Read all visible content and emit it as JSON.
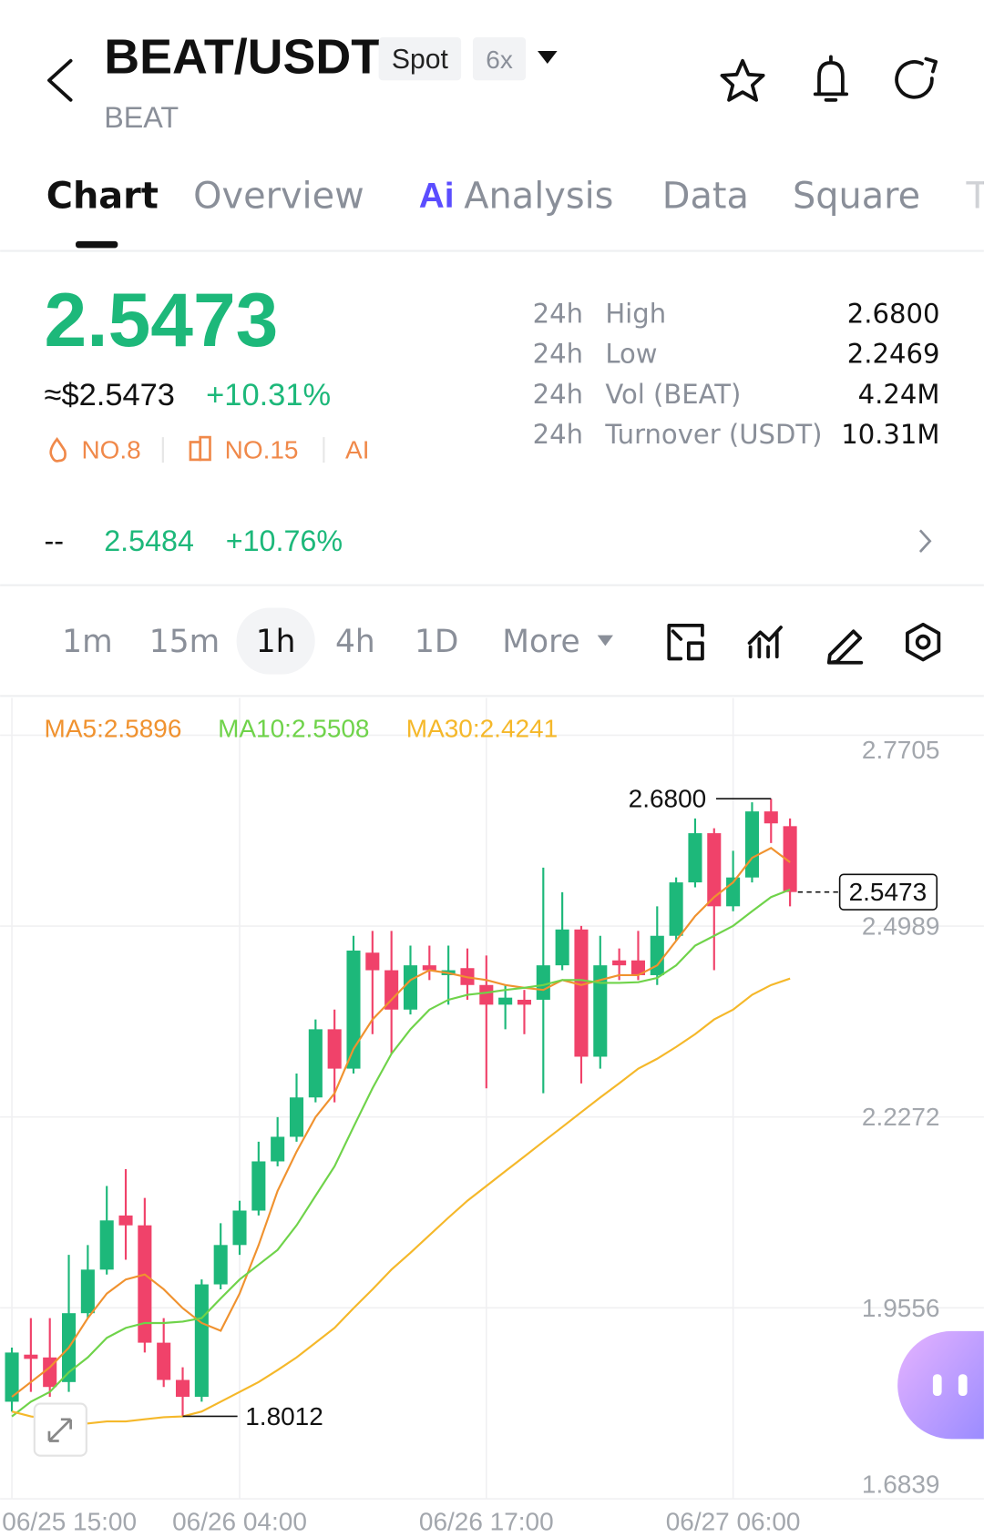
{
  "header": {
    "title": "BEAT/USDT",
    "tags": [
      "Spot",
      "6x"
    ],
    "subtitle": "BEAT"
  },
  "tabs": [
    "Chart",
    "Overview",
    "Analysis",
    "Data",
    "Square",
    "T"
  ],
  "ai_badge": "Ai",
  "ticker": {
    "price": "2.5473",
    "usd_price": "≈$2.5473",
    "change": "+10.31%",
    "badges": [
      "NO.8",
      "NO.15",
      "AI"
    ],
    "stats": [
      [
        "24h",
        "High",
        "2.6800"
      ],
      [
        "24h",
        "Low",
        "2.2469"
      ],
      [
        "24h",
        "Vol (BEAT)",
        "4.24M"
      ],
      [
        "24h",
        "Turnover (USDT)",
        "10.31M"
      ]
    ],
    "alt": {
      "label": "--",
      "price": "2.5484",
      "change": "+10.76%"
    }
  },
  "intervals": [
    "1m",
    "15m",
    "1h",
    "4h",
    "1D",
    "More"
  ],
  "chart_data": {
    "type": "candlestick",
    "categories": [
      "06/25 15:00",
      null,
      null,
      null,
      null,
      null,
      null,
      null,
      null,
      null,
      null,
      null,
      "06/26 04:00",
      null,
      null,
      null,
      null,
      null,
      null,
      null,
      null,
      null,
      null,
      null,
      null,
      "06/26 17:00",
      null,
      null,
      null,
      null,
      null,
      null,
      null,
      null,
      null,
      null,
      null,
      null,
      "06/27 06:00",
      null,
      null,
      null
    ],
    "open": [
      1.822,
      1.889,
      1.885,
      1.85,
      1.948,
      2.01,
      2.087,
      2.073,
      1.906,
      1.853,
      1.829,
      1.989,
      2.045,
      2.094,
      2.164,
      2.199,
      2.255,
      2.352,
      2.296,
      2.461,
      2.436,
      2.38,
      2.443,
      2.429,
      2.439,
      2.415,
      2.387,
      2.394,
      2.394,
      2.443,
      2.494,
      2.313,
      2.45,
      2.45,
      2.429,
      2.485,
      2.561,
      2.631,
      2.527,
      2.568,
      2.662,
      2.641
    ],
    "high": [
      1.899,
      1.941,
      1.941,
      2.031,
      2.045,
      2.129,
      2.153,
      2.112,
      1.941,
      1.871,
      1.996,
      2.076,
      2.108,
      2.192,
      2.227,
      2.289,
      2.366,
      2.38,
      2.485,
      2.492,
      2.492,
      2.471,
      2.471,
      2.471,
      2.467,
      2.457,
      2.415,
      2.408,
      2.582,
      2.547,
      2.499,
      2.485,
      2.467,
      2.492,
      2.527,
      2.568,
      2.652,
      2.638,
      2.606,
      2.675,
      2.68,
      2.652
    ],
    "low": [
      1.808,
      1.836,
      1.829,
      1.836,
      1.941,
      2.003,
      2.024,
      1.892,
      1.843,
      1.8012,
      1.822,
      1.982,
      2.031,
      2.087,
      2.157,
      2.192,
      2.248,
      2.248,
      2.289,
      2.345,
      2.317,
      2.373,
      2.422,
      2.387,
      2.394,
      2.268,
      2.352,
      2.345,
      2.261,
      2.436,
      2.275,
      2.296,
      2.422,
      2.422,
      2.415,
      2.478,
      2.554,
      2.436,
      2.52,
      2.561,
      2.617,
      2.527
    ],
    "close": [
      1.892,
      1.883,
      1.843,
      1.948,
      2.01,
      2.08,
      2.073,
      1.906,
      1.853,
      1.829,
      1.989,
      2.045,
      2.094,
      2.164,
      2.199,
      2.255,
      2.352,
      2.296,
      2.464,
      2.436,
      2.38,
      2.443,
      2.436,
      2.436,
      2.415,
      2.387,
      2.397,
      2.387,
      2.443,
      2.494,
      2.313,
      2.443,
      2.443,
      2.429,
      2.485,
      2.561,
      2.631,
      2.527,
      2.568,
      2.662,
      2.645,
      2.5473
    ],
    "up_color": "#1db87a",
    "down_color": "#f0426a",
    "series": [
      {
        "label": "MA5:2.5896",
        "color": "#f0922f",
        "values": [
          1.829,
          1.85,
          1.871,
          1.899,
          1.941,
          1.976,
          1.996,
          2.003,
          1.982,
          1.955,
          1.934,
          1.923,
          1.976,
          2.045,
          2.122,
          2.178,
          2.227,
          2.261,
          2.324,
          2.366,
          2.394,
          2.422,
          2.436,
          2.432,
          2.426,
          2.422,
          2.415,
          2.411,
          2.408,
          2.422,
          2.415,
          2.422,
          2.429,
          2.429,
          2.443,
          2.478,
          2.513,
          2.54,
          2.561,
          2.596,
          2.61,
          2.5896
        ]
      },
      {
        "label": "MA10:2.5508",
        "color": "#6fd34a",
        "values": [
          1.801,
          1.822,
          1.836,
          1.864,
          1.885,
          1.913,
          1.927,
          1.934,
          1.934,
          1.936,
          1.941,
          1.969,
          1.996,
          2.017,
          2.038,
          2.073,
          2.115,
          2.157,
          2.213,
          2.268,
          2.317,
          2.352,
          2.38,
          2.394,
          2.401,
          2.404,
          2.408,
          2.411,
          2.415,
          2.422,
          2.422,
          2.418,
          2.418,
          2.419,
          2.425,
          2.443,
          2.471,
          2.485,
          2.499,
          2.52,
          2.54,
          2.5508
        ]
      },
      {
        "label": "MA30:2.4241",
        "color": "#f5b82a",
        "values": [
          1.808,
          1.801,
          1.797,
          1.794,
          1.791,
          1.794,
          1.794,
          1.797,
          1.8,
          1.801,
          1.808,
          1.822,
          1.836,
          1.85,
          1.867,
          1.885,
          1.906,
          1.927,
          1.955,
          1.982,
          2.01,
          2.034,
          2.059,
          2.084,
          2.108,
          2.129,
          2.15,
          2.171,
          2.192,
          2.213,
          2.234,
          2.255,
          2.275,
          2.296,
          2.31,
          2.327,
          2.345,
          2.366,
          2.38,
          2.401,
          2.415,
          2.4241
        ]
      }
    ],
    "ylim": [
      1.6839,
      2.7705
    ],
    "yticks": [
      2.7705,
      2.4989,
      2.2272,
      1.9556,
      1.6839
    ],
    "grid": true,
    "max_marker": {
      "value": 2.68,
      "label": "2.6800"
    },
    "min_marker": {
      "value": 1.8012,
      "label": "1.8012"
    },
    "last_price": {
      "value": 2.5473,
      "label": "2.5473"
    }
  }
}
